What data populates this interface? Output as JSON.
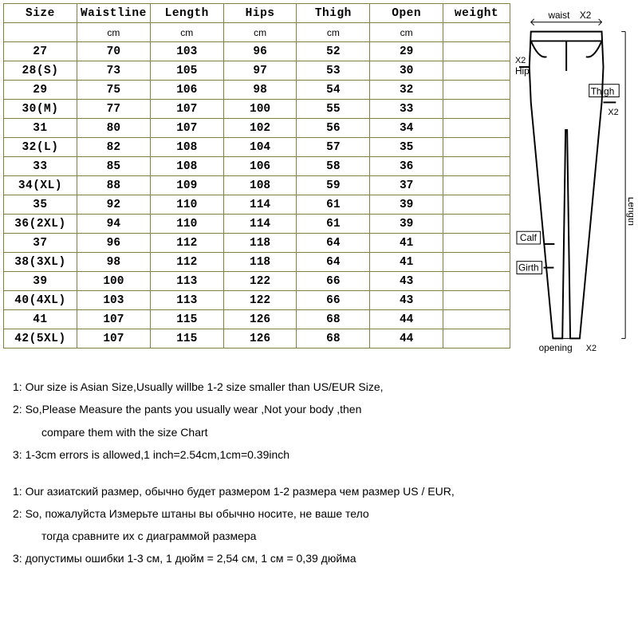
{
  "columns": [
    "Size",
    "Waistline",
    "Length",
    "Hips",
    "Thigh",
    "Open",
    "weight"
  ],
  "unit": "cm",
  "rows": [
    [
      "27",
      "70",
      "103",
      "96",
      "52",
      "29",
      ""
    ],
    [
      "28(S)",
      "73",
      "105",
      "97",
      "53",
      "30",
      ""
    ],
    [
      "29",
      "75",
      "106",
      "98",
      "54",
      "32",
      ""
    ],
    [
      "30(M)",
      "77",
      "107",
      "100",
      "55",
      "33",
      ""
    ],
    [
      "31",
      "80",
      "107",
      "102",
      "56",
      "34",
      ""
    ],
    [
      "32(L)",
      "82",
      "108",
      "104",
      "57",
      "35",
      ""
    ],
    [
      "33",
      "85",
      "108",
      "106",
      "58",
      "36",
      ""
    ],
    [
      "34(XL)",
      "88",
      "109",
      "108",
      "59",
      "37",
      ""
    ],
    [
      "35",
      "92",
      "110",
      "114",
      "61",
      "39",
      ""
    ],
    [
      "36(2XL)",
      "94",
      "110",
      "114",
      "61",
      "39",
      ""
    ],
    [
      "37",
      "96",
      "112",
      "118",
      "64",
      "41",
      ""
    ],
    [
      "38(3XL)",
      "98",
      "112",
      "118",
      "64",
      "41",
      ""
    ],
    [
      "39",
      "100",
      "113",
      "122",
      "66",
      "43",
      ""
    ],
    [
      "40(4XL)",
      "103",
      "113",
      "122",
      "66",
      "43",
      ""
    ],
    [
      "41",
      "107",
      "115",
      "126",
      "68",
      "44",
      ""
    ],
    [
      "42(5XL)",
      "107",
      "115",
      "126",
      "68",
      "44",
      ""
    ]
  ],
  "diagram_labels": {
    "waist": "waist",
    "hip": "Hip",
    "thigh": "Thigh",
    "calf": "Calf",
    "girth": "Girth",
    "opening": "opening",
    "length": "Length",
    "x2": "X2"
  },
  "notes_en": [
    "1:   Our size is Asian Size,Usually willbe 1-2 size smaller than US/EUR Size,",
    "2:   So,Please Measure the pants you usually wear ,Not your body ,then",
    "compare them with the size Chart",
    "3:   1-3cm errors is allowed,1 inch=2.54cm,1cm=0.39inch"
  ],
  "notes_ru": [
    "1:  Our азиатский размер, обычно будет размером 1-2 размера чем размер US / EUR,",
    "2:  So, пожалуйста Измерьте штаны вы обычно носите, не ваше тело",
    "тогда сравните их с диаграммой размера",
    "3: допустимы ошибки 1-3 см, 1 дюйм = 2,54 см, 1 см = 0,39 дюйма"
  ],
  "colors": {
    "border": "#808040",
    "bg": "#ffffff",
    "text": "#000000"
  }
}
